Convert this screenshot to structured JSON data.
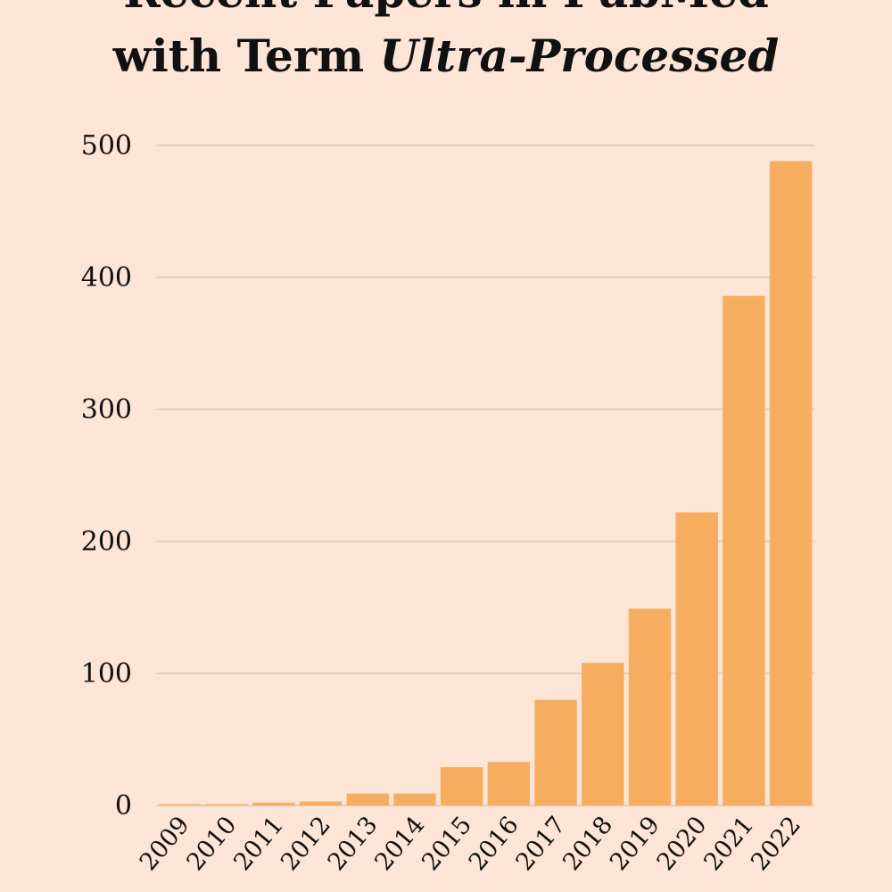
{
  "chart_data": {
    "type": "bar",
    "title_lines": [
      "Recent Papers in PubMed",
      "with Term"
    ],
    "title_italic": "Ultra-Processed",
    "categories": [
      "2009",
      "2010",
      "2011",
      "2012",
      "2013",
      "2014",
      "2015",
      "2016",
      "2017",
      "2018",
      "2019",
      "2020",
      "2021",
      "2022"
    ],
    "values": [
      1,
      1,
      2,
      3,
      9,
      9,
      29,
      33,
      80,
      108,
      149,
      222,
      386,
      488
    ],
    "color": "#f7ad60",
    "ylim": [
      0,
      500
    ],
    "yticks": [
      0,
      100,
      200,
      300,
      400,
      500
    ],
    "grid": true
  }
}
